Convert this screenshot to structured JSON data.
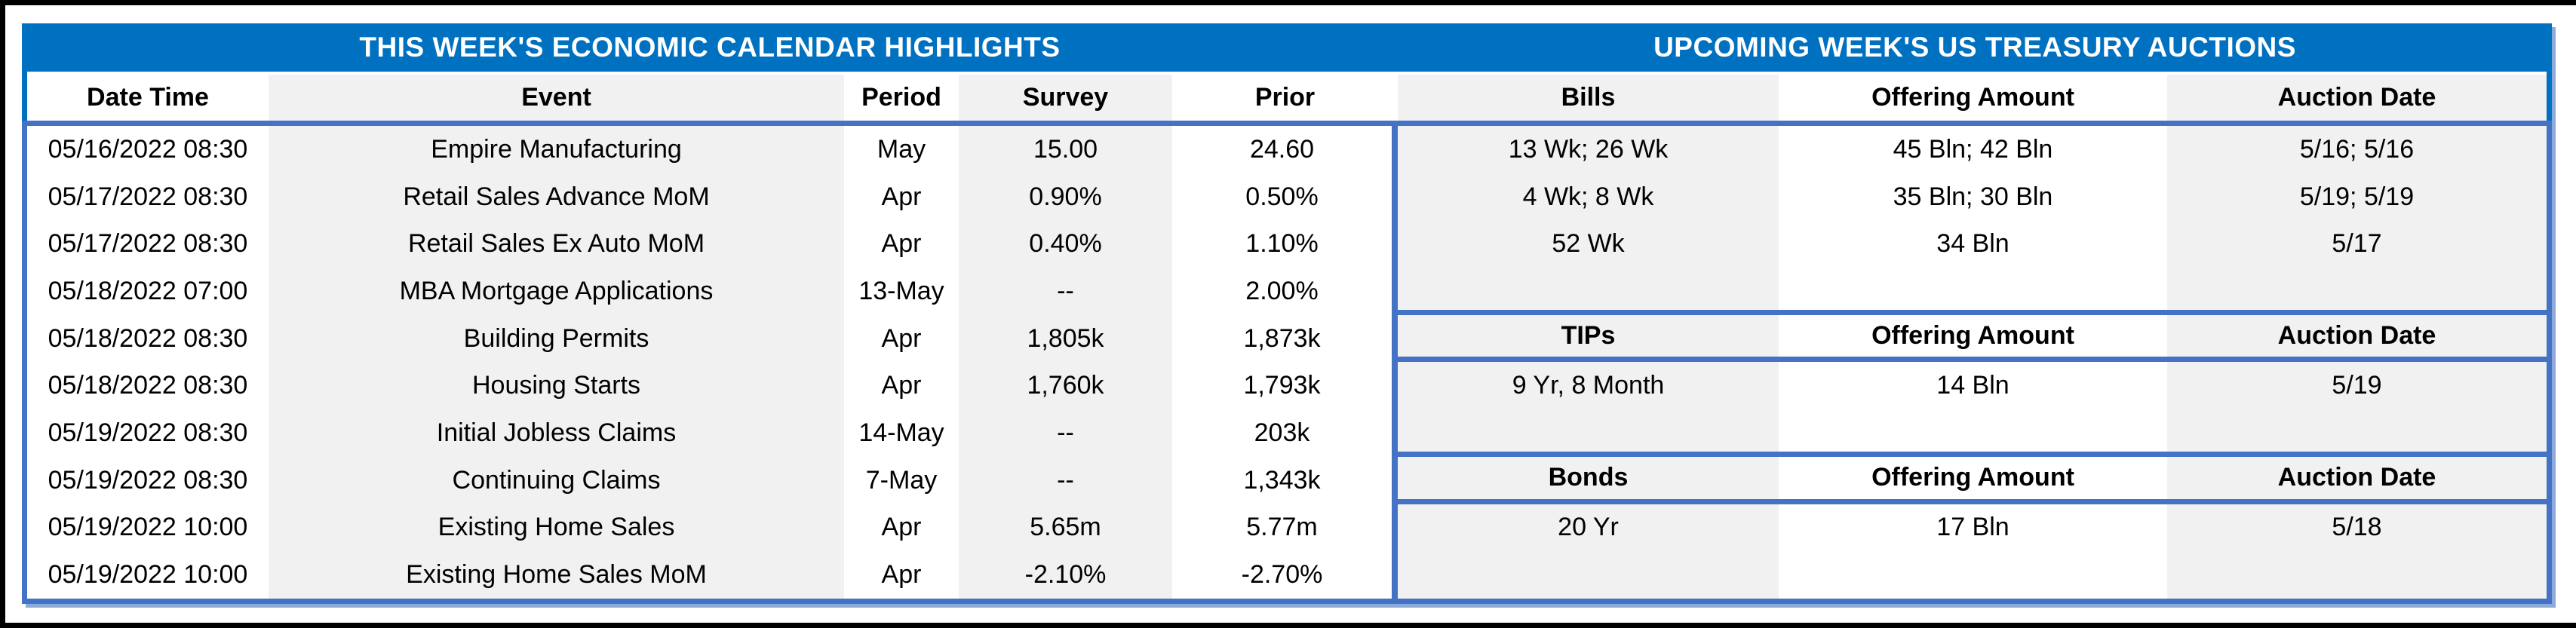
{
  "page": {
    "left_title": "THIS WEEK'S ECONOMIC CALENDAR HIGHLIGHTS",
    "right_title": "UPCOMING WEEK'S US TREASURY AUCTIONS"
  },
  "colors": {
    "band_blue": "#0070C0",
    "border_blue": "#4472C4",
    "border_blue_light": "#8EAADB",
    "stripe_gray": "#F1F1F1",
    "text": "#000000"
  },
  "calendar": {
    "columns": [
      "Date Time",
      "Event",
      "Period",
      "Survey",
      "Prior"
    ],
    "rows": [
      [
        "05/16/2022 08:30",
        "Empire Manufacturing",
        "May",
        "15.00",
        "24.60"
      ],
      [
        "05/17/2022 08:30",
        "Retail Sales Advance MoM",
        "Apr",
        "0.90%",
        "0.50%"
      ],
      [
        "05/17/2022 08:30",
        "Retail Sales Ex Auto MoM",
        "Apr",
        "0.40%",
        "1.10%"
      ],
      [
        "05/18/2022 07:00",
        "MBA Mortgage Applications",
        "13-May",
        "--",
        "2.00%"
      ],
      [
        "05/18/2022 08:30",
        "Building Permits",
        "Apr",
        "1,805k",
        "1,873k"
      ],
      [
        "05/18/2022 08:30",
        "Housing Starts",
        "Apr",
        "1,760k",
        "1,793k"
      ],
      [
        "05/19/2022 08:30",
        "Initial Jobless Claims",
        "14-May",
        "--",
        "203k"
      ],
      [
        "05/19/2022 08:30",
        "Continuing Claims",
        "7-May",
        "--",
        "1,343k"
      ],
      [
        "05/19/2022 10:00",
        "Existing Home Sales",
        "Apr",
        "5.65m",
        "5.77m"
      ],
      [
        "05/19/2022 10:00",
        "Existing Home Sales MoM",
        "Apr",
        "-2.10%",
        "-2.70%"
      ]
    ]
  },
  "treasury": {
    "sections": [
      {
        "name": "Bills",
        "columns": [
          "Bills",
          "Offering Amount",
          "Auction Date"
        ],
        "rows": [
          [
            "13 Wk; 26 Wk",
            "45 Bln; 42 Bln",
            "5/16; 5/16"
          ],
          [
            "4 Wk; 8 Wk",
            "35 Bln; 30 Bln",
            "5/19; 5/19"
          ],
          [
            "52 Wk",
            "34 Bln",
            "5/17"
          ]
        ]
      },
      {
        "name": "TIPs",
        "columns": [
          "TIPs",
          "Offering Amount",
          "Auction Date"
        ],
        "rows": [
          [
            "9 Yr, 8 Month",
            "14 Bln",
            "5/19"
          ]
        ]
      },
      {
        "name": "Bonds",
        "columns": [
          "Bonds",
          "Offering Amount",
          "Auction Date"
        ],
        "rows": [
          [
            "20 Yr",
            "17 Bln",
            "5/18"
          ]
        ]
      }
    ]
  }
}
